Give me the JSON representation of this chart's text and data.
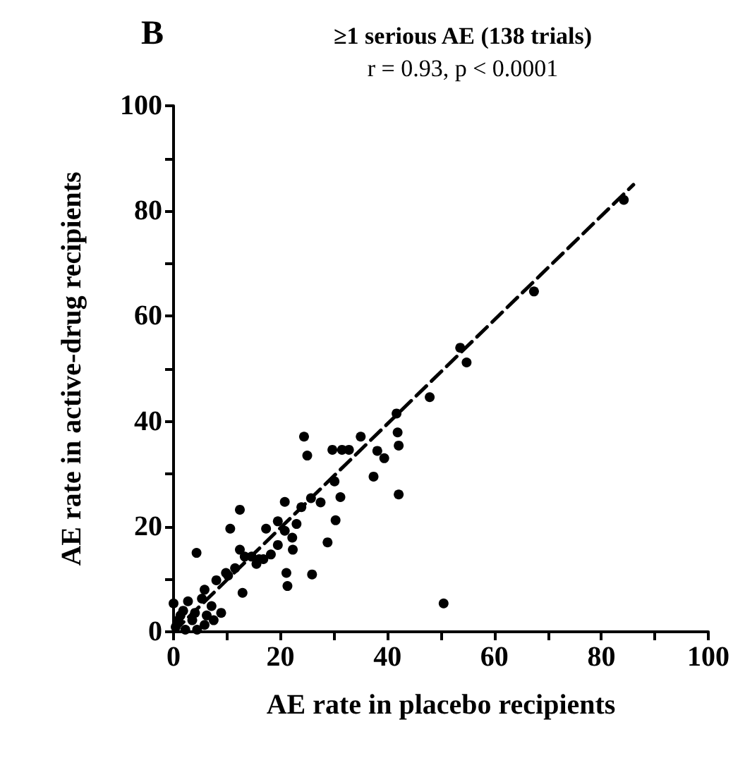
{
  "chart_data": {
    "type": "scatter",
    "title": "≥1 serious AE (138 trials)",
    "subtitle": "r = 0.93, p < 0.0001",
    "annotations": [
      "B"
    ],
    "xlabel": "AE rate in placebo recipients",
    "ylabel": "AE rate in active-drug recipients",
    "xlim": [
      0,
      100
    ],
    "ylim": [
      0,
      100
    ],
    "xticks": [
      0,
      {
        "value": 10,
        "label": null
      },
      20,
      {
        "value": 30,
        "label": null
      },
      40,
      {
        "value": 50,
        "label": null
      },
      60,
      {
        "value": 70,
        "label": null
      },
      80,
      {
        "value": 90,
        "label": null
      },
      100
    ],
    "yticks": [
      0,
      {
        "value": 10,
        "label": null
      },
      20,
      {
        "value": 30,
        "label": null
      },
      40,
      {
        "value": 50,
        "label": null
      },
      60,
      {
        "value": 70,
        "label": null
      },
      80,
      {
        "value": 90,
        "label": null
      },
      100
    ],
    "grid": false,
    "series": [
      {
        "color": "#000000",
        "marker": "circle",
        "x": [
          84.2,
          67.4,
          53.6,
          54.8,
          47.9,
          41.7,
          41.9,
          42.1,
          42.1,
          35.0,
          38.1,
          39.4,
          37.4,
          24.4,
          25.0,
          29.7,
          31.5,
          32.8,
          30.1,
          31.2,
          30.3,
          28.8,
          25.9,
          50.5,
          20.8,
          25.7,
          23.9,
          19.5,
          17.3,
          20.8,
          22.2,
          22.3,
          21.1,
          21.3,
          12.4,
          10.6,
          4.3,
          12.4,
          13.3,
          14.6,
          16.0,
          18.2,
          19.5,
          11.5,
          10.2,
          8.0,
          12.9,
          5.8,
          5.3,
          7.1,
          8.9,
          2.7,
          1.8,
          0.9,
          3.5,
          5.8,
          0.4,
          4.4,
          2.2,
          1.3,
          4.0,
          6.2,
          0,
          7.5,
          9.8,
          15.5,
          16.8,
          23.0,
          27.5
        ],
        "values": [
          82.1,
          64.7,
          54.0,
          51.2,
          44.6,
          41.5,
          37.9,
          35.4,
          26.1,
          37.1,
          34.4,
          33.0,
          29.5,
          37.1,
          33.5,
          34.6,
          34.6,
          34.6,
          28.6,
          25.6,
          21.2,
          17.0,
          10.9,
          5.4,
          24.7,
          25.4,
          23.7,
          21.0,
          19.6,
          19.2,
          17.9,
          15.6,
          11.2,
          8.7,
          23.2,
          19.6,
          15.0,
          15.6,
          14.3,
          14.3,
          13.8,
          14.7,
          16.5,
          12.1,
          10.7,
          9.8,
          7.4,
          8.0,
          6.3,
          4.9,
          3.6,
          5.8,
          4.0,
          2.2,
          2.2,
          1.3,
          0.9,
          0.4,
          0.4,
          3.1,
          3.6,
          3.1,
          5.4,
          2.2,
          11.2,
          12.9,
          13.8,
          20.5,
          24.6
        ]
      },
      {
        "type": "line",
        "color": "#000000",
        "marker": "none",
        "line_style": "dashed",
        "x": [
          0,
          86
        ],
        "values": [
          0,
          85
        ]
      }
    ]
  }
}
